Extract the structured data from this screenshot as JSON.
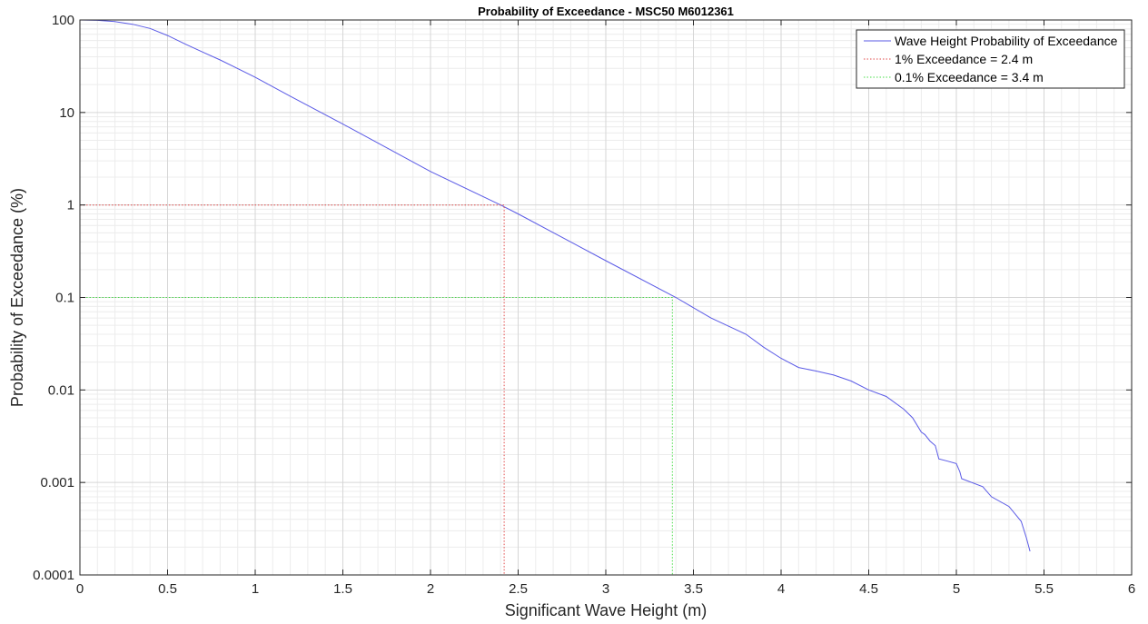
{
  "chart_data": {
    "type": "line",
    "title": "Probability of Exceedance - MSC50 M6012361",
    "xlabel": "Significant Wave Height (m)",
    "ylabel": "Probability of Exceedance (%)",
    "xlim": [
      0,
      6
    ],
    "ylim": [
      0.0001,
      100
    ],
    "yscale": "log",
    "grid": true,
    "minor_grid": true,
    "legend_position": "top-right",
    "x_ticks": [
      "0",
      "0.5",
      "1",
      "1.5",
      "2",
      "2.5",
      "3",
      "3.5",
      "4",
      "4.5",
      "5",
      "5.5",
      "6"
    ],
    "y_ticks": [
      "0.0001",
      "0.001",
      "0.01",
      "0.1",
      "1",
      "10",
      "100"
    ],
    "series": [
      {
        "name": "Wave Height Probability of Exceedance",
        "color": "#5a5ae6",
        "style": "solid",
        "x": [
          0,
          0.1,
          0.2,
          0.3,
          0.4,
          0.5,
          0.6,
          0.7,
          0.8,
          1.0,
          1.2,
          1.5,
          2.0,
          2.4,
          2.5,
          3.0,
          3.4,
          3.6,
          3.8,
          3.9,
          4.0,
          4.1,
          4.2,
          4.3,
          4.4,
          4.5,
          4.6,
          4.7,
          4.75,
          4.8,
          4.82,
          4.85,
          4.88,
          4.9,
          4.95,
          5.0,
          5.02,
          5.03,
          5.15,
          5.2,
          5.3,
          5.37,
          5.4,
          5.42
        ],
        "y": [
          100,
          99,
          96,
          90,
          81,
          68,
          55,
          45,
          37,
          24,
          15,
          7.5,
          2.3,
          1.0,
          0.8,
          0.25,
          0.1,
          0.06,
          0.04,
          0.029,
          0.022,
          0.0175,
          0.016,
          0.0145,
          0.0125,
          0.01,
          0.0085,
          0.0062,
          0.005,
          0.0035,
          0.0033,
          0.0028,
          0.0025,
          0.0018,
          0.0017,
          0.0016,
          0.0013,
          0.0011,
          0.0009,
          0.0007,
          0.00055,
          0.00038,
          0.00025,
          0.00018
        ]
      },
      {
        "name": "1% Exceedance = 2.4 m",
        "color": "#e24a4a",
        "style": "dotted",
        "x": [
          0,
          2.42,
          2.42
        ],
        "y": [
          1,
          1,
          0.0001
        ]
      },
      {
        "name": "0.1% Exceedance = 3.4 m",
        "color": "#4ade4a",
        "style": "dotted",
        "x": [
          0,
          3.38,
          3.38
        ],
        "y": [
          0.1,
          0.1,
          0.0001
        ]
      }
    ]
  }
}
